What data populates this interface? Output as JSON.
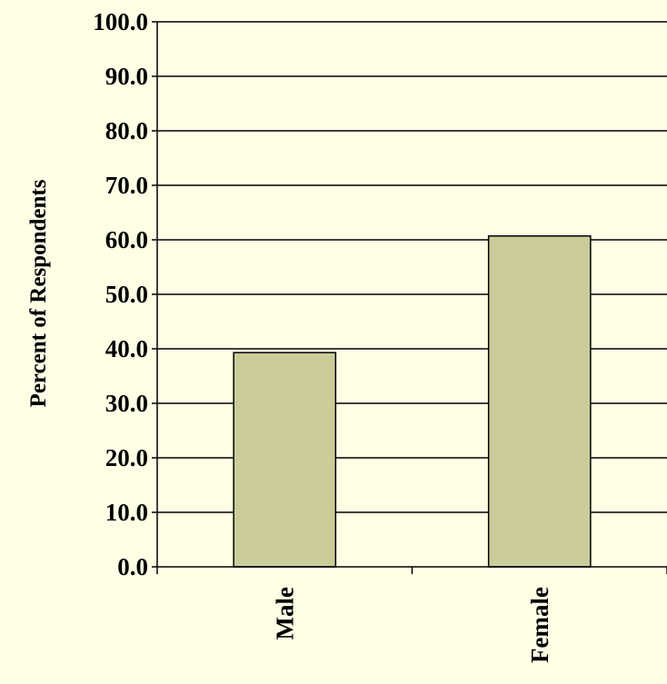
{
  "colors": {
    "background": "#ffffe6",
    "bar_fill": "#cccc99",
    "bar_stroke": "#000000",
    "grid": "#000000"
  },
  "chart_data": {
    "type": "bar",
    "categories": [
      "Male",
      "Female"
    ],
    "values": [
      39.3,
      60.7
    ],
    "ylabel": "Percent of Respondents",
    "xlabel": "",
    "ylim": [
      0,
      100
    ],
    "y_ticks": [
      "0.0",
      "10.0",
      "20.0",
      "30.0",
      "40.0",
      "50.0",
      "60.0",
      "70.0",
      "80.0",
      "90.0",
      "100.0"
    ],
    "grid": true,
    "legend": "none",
    "category_label_orientation": "vertical"
  }
}
